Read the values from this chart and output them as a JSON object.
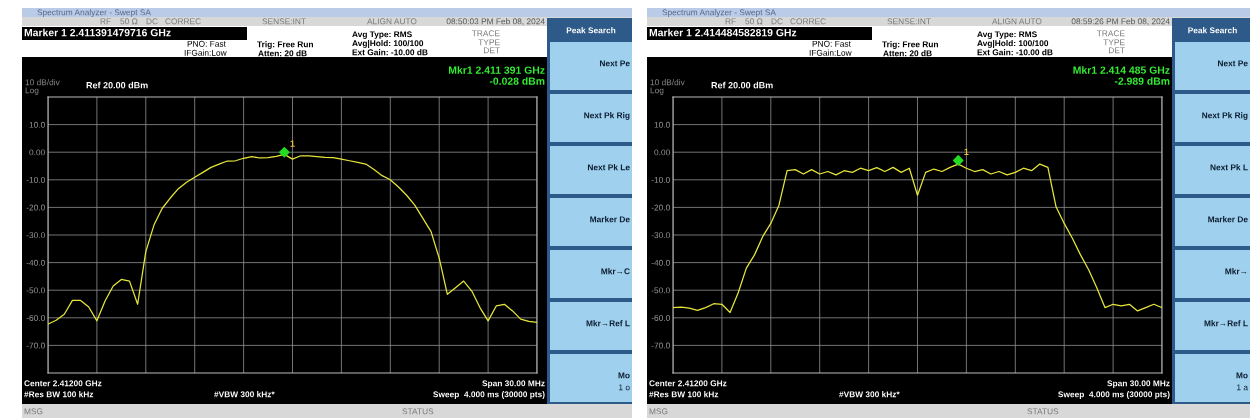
{
  "chart_data": [
    {
      "type": "line",
      "title": "Marker 1 2.411391479716 GHz",
      "categories": [
        null,
        null,
        null,
        null,
        null,
        null,
        null,
        null,
        null,
        null,
        null,
        null,
        null,
        null,
        null,
        null,
        null,
        null,
        null,
        null,
        null,
        null,
        null,
        null,
        null,
        null,
        null,
        null,
        null,
        null,
        null,
        null,
        null,
        null,
        null,
        null,
        null,
        null,
        null,
        null,
        null,
        null,
        null,
        null,
        null,
        null,
        null,
        null,
        null,
        null,
        null,
        null,
        null,
        null,
        null,
        null,
        null,
        null,
        null,
        null,
        null
      ],
      "series": [
        {
          "color": "#e6e63a",
          "values": [
            -62.3,
            -60.9,
            -58.7,
            -53.7,
            -53.7,
            -56.1,
            -61.1,
            -53.9,
            -48.5,
            -46.1,
            -46.7,
            -55.1,
            -36.0,
            -26.4,
            -20.4,
            -16.6,
            -13.2,
            -10.9,
            -9.1,
            -7.3,
            -5.5,
            -4.3,
            -3.2,
            -3.1,
            -2.2,
            -1.6,
            -2.1,
            -2.0,
            -1.5,
            -0.8,
            -2.5,
            -1.3,
            -1.3,
            -1.6,
            -1.9,
            -2.0,
            -2.5,
            -3.1,
            -3.7,
            -4.3,
            -6.3,
            -8.5,
            -10.0,
            -12.6,
            -15.6,
            -19.2,
            -24.0,
            -28.8,
            -38.4,
            -51.5,
            -49.1,
            -46.7,
            -50.3,
            -56.3,
            -61.1,
            -55.7,
            -55.1,
            -57.5,
            -60.5,
            -61.3,
            -61.7
          ]
        },
        {
          "type": "scatter",
          "name": "1",
          "color": "#22dd22",
          "marker": "diamond",
          "values": [
            null,
            null,
            null,
            null,
            null,
            null,
            null,
            null,
            null,
            null,
            null,
            null,
            null,
            null,
            null,
            null,
            null,
            null,
            null,
            null,
            null,
            null,
            null,
            null,
            null,
            null,
            null,
            null,
            null,
            -0.028,
            null,
            null,
            null,
            null,
            null,
            null,
            null,
            null,
            null,
            null,
            null,
            null,
            null,
            null,
            null,
            null,
            null,
            null,
            null,
            null,
            null,
            null,
            null,
            null,
            null,
            null,
            null,
            null,
            null,
            null,
            null
          ]
        }
      ],
      "ylim": [
        -80,
        20
      ],
      "yticks": [
        {
          "value": 10,
          "label": "10.0"
        },
        {
          "value": 0,
          "label": "0.00"
        },
        {
          "value": -10,
          "label": "-10.0"
        },
        {
          "value": -20,
          "label": "-20.0"
        },
        {
          "value": -30,
          "label": "-30.0"
        },
        {
          "value": -40,
          "label": "-40.0"
        },
        {
          "value": -50,
          "label": "-50.0"
        },
        {
          "value": -60,
          "label": "-60.0"
        },
        {
          "value": -70,
          "label": "-70.0"
        }
      ],
      "grid": true,
      "annotations": [
        "Spectrum Analyzer - Swept SA",
        "RF",
        "50 Ω",
        "DC",
        "CORREC",
        "SENSE:INT",
        "ALIGN AUTO",
        "08:50:03 PM Feb 08, 2024",
        "PNO: Fast",
        "IFGain:Low",
        "Trig: Free Run",
        "Atten: 20 dB",
        "Avg Type: RMS",
        "Avg|Hold: 100/100",
        "Ext Gain: -10.00 dB",
        "TRACE",
        "TYPE",
        "DET",
        "10 dB/div",
        "Log",
        "Ref 20.00 dBm",
        "Mkr1 2.411 391 GHz",
        "-0.028 dBm",
        "Center 2.41200 GHz",
        "#Res BW 100 kHz",
        "#VBW 300 kHz*",
        "Span 30.00 MHz",
        "Sweep  4.000 ms (30000 pts)",
        "MSG",
        "STATUS",
        "Peak Search",
        "Next Pe",
        "Next Pk Rig",
        "Next Pk Le",
        "Marker De",
        "Mkr→C",
        "Mkr→Ref L",
        "Mo",
        "1 o"
      ]
    },
    {
      "type": "line",
      "title": "Marker 1 2.414484582819 GHz",
      "categories": [
        null,
        null,
        null,
        null,
        null,
        null,
        null,
        null,
        null,
        null,
        null,
        null,
        null,
        null,
        null,
        null,
        null,
        null,
        null,
        null,
        null,
        null,
        null,
        null,
        null,
        null,
        null,
        null,
        null,
        null,
        null,
        null,
        null,
        null,
        null,
        null,
        null,
        null,
        null,
        null,
        null,
        null,
        null,
        null,
        null,
        null,
        null,
        null,
        null,
        null,
        null,
        null,
        null,
        null,
        null,
        null,
        null,
        null,
        null,
        null,
        null
      ],
      "series": [
        {
          "color": "#e6e63a",
          "values": [
            -56.3,
            -56.1,
            -56.5,
            -57.3,
            -56.3,
            -54.9,
            -55.1,
            -58.1,
            -50.9,
            -42.0,
            -37.2,
            -30.6,
            -25.8,
            -19.2,
            -6.7,
            -6.3,
            -7.9,
            -6.3,
            -7.9,
            -7.0,
            -8.2,
            -6.7,
            -7.3,
            -5.8,
            -6.7,
            -5.6,
            -7.0,
            -5.5,
            -7.3,
            -5.8,
            -15.6,
            -7.3,
            -6.1,
            -7.0,
            -5.5,
            -4.3,
            -5.8,
            -7.0,
            -6.3,
            -7.9,
            -7.0,
            -8.2,
            -7.3,
            -5.8,
            -6.7,
            -4.3,
            -5.5,
            -19.8,
            -25.8,
            -31.2,
            -37.2,
            -42.6,
            -49.1,
            -56.3,
            -55.1,
            -55.7,
            -55.1,
            -57.5,
            -56.3,
            -55.1,
            -56.3
          ]
        },
        {
          "type": "scatter",
          "name": "1",
          "color": "#22dd22",
          "marker": "diamond",
          "values": [
            null,
            null,
            null,
            null,
            null,
            null,
            null,
            null,
            null,
            null,
            null,
            null,
            null,
            null,
            null,
            null,
            null,
            null,
            null,
            null,
            null,
            null,
            null,
            null,
            null,
            null,
            null,
            null,
            null,
            null,
            null,
            null,
            null,
            null,
            null,
            -2.989,
            null,
            null,
            null,
            null,
            null,
            null,
            null,
            null,
            null,
            null,
            null,
            null,
            null,
            null,
            null,
            null,
            null,
            null,
            null,
            null,
            null,
            null,
            null,
            null,
            null
          ]
        }
      ],
      "ylim": [
        -80,
        20
      ],
      "yticks": [
        {
          "value": 10,
          "label": "10.0"
        },
        {
          "value": 0,
          "label": "0.00"
        },
        {
          "value": -10,
          "label": "-10.0"
        },
        {
          "value": -20,
          "label": "-20.0"
        },
        {
          "value": -30,
          "label": "-30.0"
        },
        {
          "value": -40,
          "label": "-40.0"
        },
        {
          "value": -50,
          "label": "-50.0"
        },
        {
          "value": -60,
          "label": "-60.0"
        },
        {
          "value": -70,
          "label": "-70.0"
        }
      ],
      "grid": true,
      "annotations": [
        "Spectrum Analyzer - Swept SA",
        "RF",
        "50 Ω",
        "DC",
        "CORREC",
        "SENSE:INT",
        "ALIGN AUTO",
        "08:59:26 PM Feb 08, 2024",
        "PNO: Fast",
        "IFGain:Low",
        "Trig: Free Run",
        "Atten: 20 dB",
        "Avg Type: RMS",
        "Avg|Hold: 100/100",
        "Ext Gain: -10.00 dB",
        "TRACE",
        "TYPE",
        "DET",
        "10 dB/div",
        "Log",
        "Ref 20.00 dBm",
        "Mkr1 2.414 485 GHz",
        "-2.989 dBm",
        "Center 2.41200 GHz",
        "#Res BW 100 kHz",
        "#VBW 300 kHz*",
        "Span 30.00 MHz",
        "Sweep  4.000 ms (30000 pts)",
        "MSG",
        "STATUS",
        "Peak Search",
        "Next Pe",
        "Next Pk Rig",
        "Next Pk L",
        "Marker De",
        "Mkr→",
        "Mkr→Ref L",
        "Mo",
        "1 a"
      ]
    }
  ]
}
